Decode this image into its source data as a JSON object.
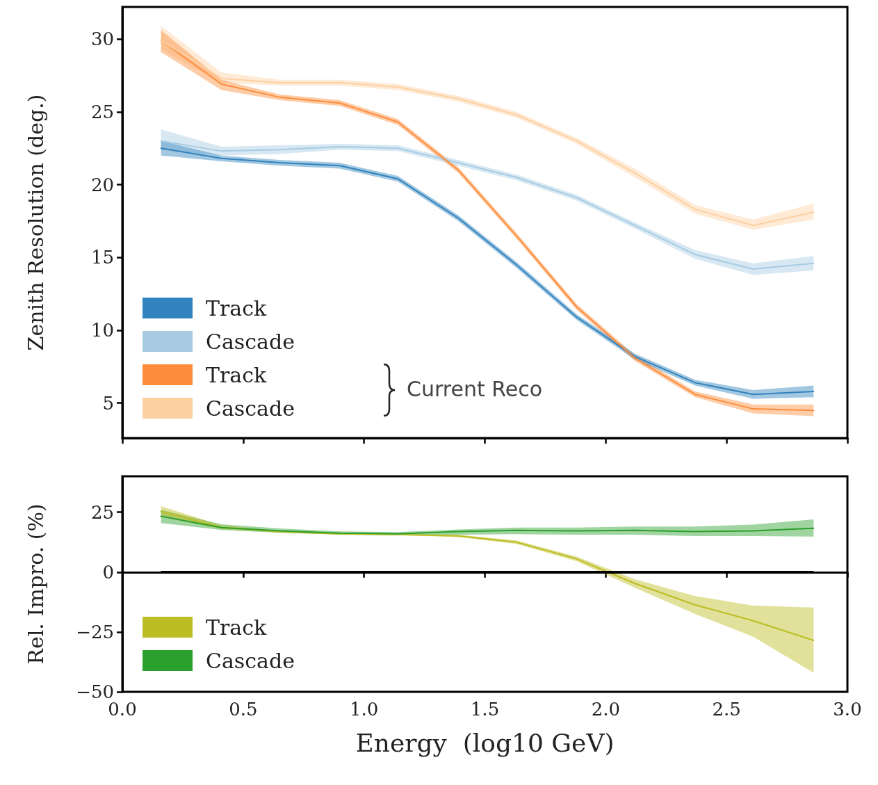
{
  "chart_data": [
    {
      "type": "line",
      "ylabel": "Zenith Resolution (deg.)",
      "x": [
        0.16,
        0.41,
        0.65,
        0.9,
        1.14,
        1.39,
        1.63,
        1.88,
        2.12,
        2.37,
        2.61,
        2.86
      ],
      "series": [
        {
          "name": "Track",
          "color": "#3182bd",
          "values": [
            22.5,
            21.8,
            21.5,
            21.3,
            20.4,
            17.7,
            14.5,
            10.9,
            8.2,
            6.4,
            5.6,
            5.8
          ],
          "lower": [
            22.0,
            21.6,
            21.3,
            21.1,
            20.2,
            17.5,
            14.3,
            10.7,
            8.0,
            6.2,
            5.3,
            5.4
          ],
          "upper": [
            23.0,
            22.0,
            21.7,
            21.5,
            20.6,
            17.9,
            14.7,
            11.1,
            8.4,
            6.6,
            5.9,
            6.2
          ]
        },
        {
          "name": "Cascade",
          "color": "#a6cbe3",
          "values": [
            23.0,
            22.3,
            22.4,
            22.6,
            22.5,
            21.5,
            20.5,
            19.1,
            17.2,
            15.2,
            14.2,
            14.6
          ],
          "lower": [
            22.4,
            22.0,
            22.1,
            22.4,
            22.3,
            21.3,
            20.3,
            18.9,
            17.0,
            14.9,
            13.8,
            14.1
          ],
          "upper": [
            23.8,
            22.6,
            22.7,
            22.8,
            22.7,
            21.7,
            20.7,
            19.3,
            17.4,
            15.5,
            14.6,
            15.1
          ]
        },
        {
          "name": "Track",
          "color": "#fd8d3c",
          "values": [
            29.9,
            26.9,
            26.0,
            25.6,
            24.3,
            21.0,
            16.5,
            11.6,
            8.1,
            5.6,
            4.6,
            4.5
          ],
          "lower": [
            29.1,
            26.5,
            25.8,
            25.4,
            24.1,
            20.8,
            16.3,
            11.4,
            7.9,
            5.4,
            4.3,
            4.1
          ],
          "upper": [
            30.6,
            27.2,
            26.2,
            25.8,
            24.5,
            21.2,
            16.7,
            11.8,
            8.3,
            5.8,
            4.9,
            4.9
          ]
        },
        {
          "name": "Cascade",
          "color": "#fdd0a2",
          "values": [
            29.9,
            27.3,
            27.0,
            27.0,
            26.7,
            25.9,
            24.8,
            23.0,
            20.8,
            18.3,
            17.2,
            18.1
          ],
          "lower": [
            29.3,
            27.0,
            26.8,
            26.8,
            26.5,
            25.7,
            24.6,
            22.8,
            20.5,
            18.0,
            16.9,
            17.6
          ],
          "upper": [
            30.9,
            27.7,
            27.2,
            27.2,
            26.9,
            26.1,
            25.0,
            23.2,
            21.1,
            18.6,
            17.6,
            18.7
          ]
        }
      ],
      "annotations": [
        "Current Reco"
      ],
      "xlim": [
        0,
        3
      ],
      "xticks": [
        0,
        0.5,
        1,
        1.5,
        2,
        2.5,
        3
      ],
      "ylim": [
        2.6,
        32.2
      ],
      "yticks": [
        5,
        10,
        15,
        20,
        25,
        30
      ],
      "tick_labels": "y",
      "legend": "bottom left",
      "grid": false,
      "marker": "none",
      "line_style": "solid"
    },
    {
      "type": "line",
      "ylabel": "Rel. Impro. (%)",
      "xlabel": "Energy  (log10 GeV)",
      "x": [
        0.16,
        0.41,
        0.65,
        0.9,
        1.14,
        1.39,
        1.63,
        1.88,
        2.12,
        2.37,
        2.61,
        2.86
      ],
      "series": [
        {
          "name": "Track",
          "color": "#bcbd22",
          "values": [
            25.3,
            18.6,
            16.9,
            16.0,
            15.7,
            15.1,
            12.5,
            5.5,
            -4.7,
            -13.7,
            -20.3,
            -28.5
          ],
          "lower": [
            23,
            18,
            16.5,
            15.7,
            15.4,
            14.6,
            11.8,
            4.5,
            -6.5,
            -17.5,
            -27,
            -42
          ],
          "upper": [
            27.5,
            19.5,
            17.3,
            16.3,
            16,
            15.6,
            13.2,
            6.5,
            -3,
            -10,
            -14,
            -14.8
          ]
        },
        {
          "name": "Cascade",
          "color": "#2ca02c",
          "values": [
            23.3,
            18.6,
            17.2,
            16.3,
            16.0,
            16.9,
            17.4,
            17.2,
            17.4,
            16.9,
            17.2,
            18.3
          ],
          "lower": [
            20.5,
            17.6,
            16.4,
            15.6,
            15.3,
            15.6,
            15.8,
            15.6,
            15.6,
            15.0,
            15.0,
            14.8
          ],
          "upper": [
            26.0,
            20.0,
            18.2,
            17.0,
            16.7,
            17.8,
            18.6,
            18.6,
            19.0,
            19.0,
            19.8,
            22.0
          ]
        }
      ],
      "ref_lines": [
        {
          "axis": "y",
          "value": 0,
          "color": "#000000"
        }
      ],
      "xlim": [
        0,
        3
      ],
      "xticks": [
        {
          "value": 0,
          "label": "0.0"
        },
        0.5,
        {
          "value": 1,
          "label": "1.0"
        },
        1.5,
        {
          "value": 2,
          "label": "2.0"
        },
        2.5,
        {
          "value": 3,
          "label": "3.0"
        }
      ],
      "ylim": [
        -50,
        40
      ],
      "yticks": [
        25,
        0,
        {
          "value": -25,
          "label": "−25"
        },
        {
          "value": -50,
          "label": "−50"
        }
      ],
      "legend": "bottom left",
      "grid": false,
      "marker": "none",
      "line_style": "solid"
    }
  ]
}
